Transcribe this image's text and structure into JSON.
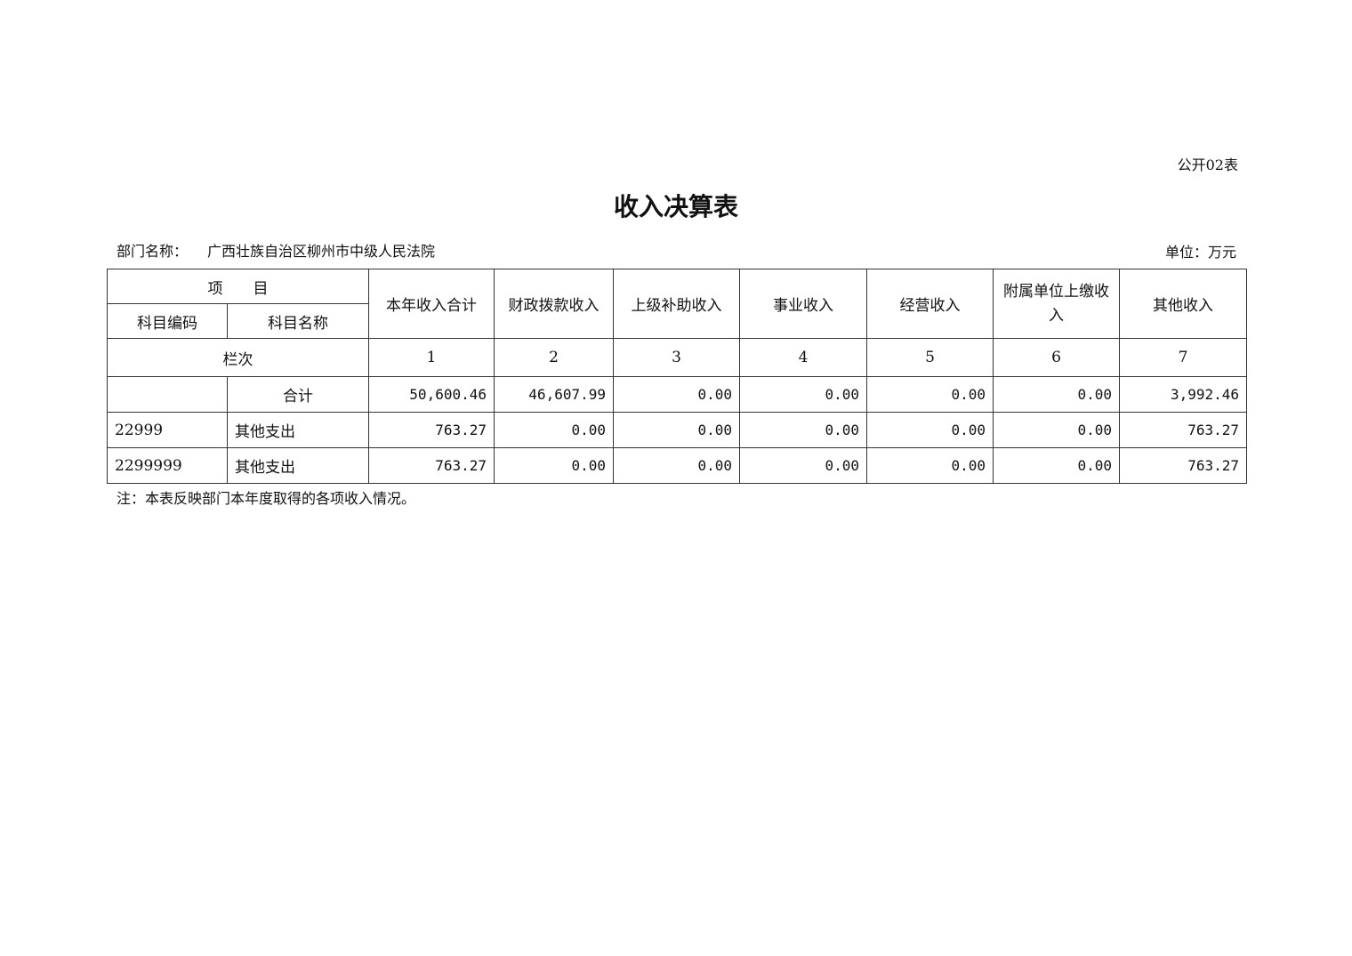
{
  "form_no": "公开02表",
  "title": "收入决算表",
  "dept_label": "部门名称：",
  "dept_value": "广西壮族自治区柳州市中级人民法院",
  "unit": "单位：万元",
  "header": {
    "item": "项　　目",
    "code": "科目编码",
    "name": "科目名称",
    "cols": [
      "本年收入合计",
      "财政拨款收入",
      "上级补助收入",
      "事业收入",
      "经营收入",
      "附属单位上缴收入",
      "其他收入"
    ],
    "seq_label": "栏次",
    "seq": [
      "1",
      "2",
      "3",
      "4",
      "5",
      "6",
      "7"
    ]
  },
  "rows": [
    {
      "code": "",
      "name": "合计",
      "values": [
        "50,600.46",
        "46,607.99",
        "0.00",
        "0.00",
        "0.00",
        "0.00",
        "3,992.46"
      ]
    },
    {
      "code": "22999",
      "name": "其他支出",
      "values": [
        "763.27",
        "0.00",
        "0.00",
        "0.00",
        "0.00",
        "0.00",
        "763.27"
      ]
    },
    {
      "code": "2299999",
      "name": "其他支出",
      "values": [
        "763.27",
        "0.00",
        "0.00",
        "0.00",
        "0.00",
        "0.00",
        "763.27"
      ]
    }
  ],
  "note": "注：本表反映部门本年度取得的各项收入情况。"
}
